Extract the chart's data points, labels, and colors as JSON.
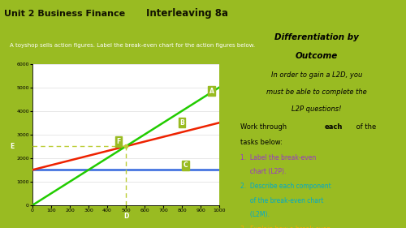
{
  "title_left": "Unit 2 Business Finance",
  "title_center": "Interleaving 8a",
  "subtitle": "A toyshop sells action figures. Label the break-even chart for the action figures below.",
  "xlim": [
    0,
    1000
  ],
  "ylim": [
    0,
    6000
  ],
  "xticks": [
    0,
    100,
    200,
    300,
    400,
    500,
    600,
    700,
    800,
    900,
    1000
  ],
  "yticks": [
    0,
    1000,
    2000,
    3000,
    4000,
    5000,
    6000
  ],
  "fixed_cost": 1500,
  "total_cost_slope": 2.0,
  "revenue_slope": 5.0,
  "breakeven_x": 500,
  "breakeven_y": 2500,
  "line_A_color": "#22cc00",
  "line_B_color": "#ee2200",
  "line_C_color": "#3366dd",
  "dashed_color": "#bbcc33",
  "label_bg_color": "#99bb22",
  "outer_bg": "#99bb22",
  "chart_border_color": "#99bb22",
  "chart_bg": "#ffffff",
  "header_bg": "#99bb22",
  "header_text_color": "#1a1a00",
  "subtitle_bg": "#cc88ee",
  "subtitle_text_color": "#ffffff",
  "right_panel_bg": "#ffffff",
  "grid_color": "#dddddd"
}
